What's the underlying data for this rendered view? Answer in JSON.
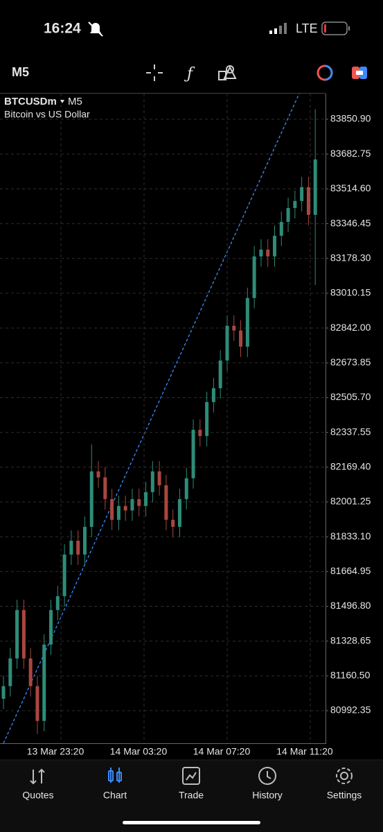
{
  "status_bar": {
    "time": "16:24",
    "network": "LTE"
  },
  "toolbar": {
    "timeframe": "M5"
  },
  "chart_data": {
    "type": "candlestick",
    "symbol": "BTCUSDm",
    "timeframe": "M5",
    "subtitle": "Bitcoin vs US Dollar",
    "up_color": "#2e8c78",
    "down_color": "#a8473f",
    "grid": true,
    "open": [
      81050,
      81111,
      81245,
      81479,
      81245,
      81111,
      80943,
      81312,
      81479,
      81546,
      81747,
      81814,
      81747,
      81881,
      82149,
      82120,
      82015,
      81915,
      81982,
      81960,
      82015,
      81982,
      82049,
      82149,
      82082,
      81915,
      81881,
      82015,
      82116,
      82350,
      82320,
      82484,
      82551,
      82685,
      82853,
      82830,
      82752,
      82987,
      83188,
      83221,
      83188,
      83288,
      83355,
      83422,
      83456,
      83523,
      83389
    ],
    "high": [
      81161,
      81295,
      81529,
      81529,
      81295,
      81161,
      81362,
      81529,
      81596,
      81797,
      81864,
      81864,
      81931,
      82280,
      82199,
      82170,
      82065,
      82032,
      82032,
      82065,
      82065,
      82099,
      82199,
      82199,
      82132,
      81965,
      82065,
      82166,
      82400,
      82400,
      82534,
      82601,
      82735,
      82903,
      82903,
      82880,
      83037,
      83238,
      83271,
      83271,
      83338,
      83405,
      83472,
      83506,
      83573,
      83573,
      83900
    ],
    "low": [
      81000,
      81061,
      81195,
      81195,
      81061,
      80880,
      80893,
      81262,
      81429,
      81496,
      81697,
      81697,
      81697,
      81831,
      82070,
      81965,
      81865,
      81865,
      81910,
      81910,
      81932,
      81932,
      81999,
      82032,
      81865,
      81831,
      81831,
      81965,
      82066,
      82270,
      82270,
      82434,
      82501,
      82635,
      82780,
      82702,
      82702,
      82937,
      83138,
      83138,
      83138,
      83238,
      83305,
      83372,
      83406,
      83339,
      83050
    ],
    "close": [
      81111,
      81245,
      81479,
      81245,
      81111,
      80943,
      81312,
      81479,
      81546,
      81747,
      81814,
      81747,
      81881,
      82149,
      82120,
      82015,
      81915,
      81982,
      81960,
      82015,
      81982,
      82049,
      82149,
      82082,
      81915,
      81881,
      82015,
      82116,
      82350,
      82320,
      82484,
      82551,
      82685,
      82853,
      82830,
      82752,
      82987,
      83188,
      83221,
      83188,
      83288,
      83355,
      83422,
      83456,
      83523,
      83389,
      83657
    ],
    "ylim": [
      80835,
      83975
    ],
    "yticks": [
      {
        "value": 83850.9,
        "label": "83850.90"
      },
      {
        "value": 83682.75,
        "label": "83682.75"
      },
      {
        "value": 83514.6,
        "label": "83514.60"
      },
      {
        "value": 83346.45,
        "label": "83346.45"
      },
      {
        "value": 83178.3,
        "label": "83178.30"
      },
      {
        "value": 83010.15,
        "label": "83010.15"
      },
      {
        "value": 82842,
        "label": "82842.00"
      },
      {
        "value": 82673.85,
        "label": "82673.85"
      },
      {
        "value": 82505.7,
        "label": "82505.70"
      },
      {
        "value": 82337.55,
        "label": "82337.55"
      },
      {
        "value": 82169.4,
        "label": "82169.40"
      },
      {
        "value": 82001.25,
        "label": "82001.25"
      },
      {
        "value": 81833.1,
        "label": "81833.10"
      },
      {
        "value": 81664.95,
        "label": "81664.95"
      },
      {
        "value": 81496.8,
        "label": "81496.80"
      },
      {
        "value": 81328.65,
        "label": "81328.65"
      },
      {
        "value": 81160.5,
        "label": "81160.50"
      },
      {
        "value": 80992.35,
        "label": "80992.35"
      }
    ],
    "xticks": [
      "13 Mar 23:20",
      "14 Mar 03:20",
      "14 Mar 07:20",
      "14 Mar 11:20"
    ]
  },
  "tab_bar": {
    "tabs": [
      "Quotes",
      "Chart",
      "Trade",
      "History",
      "Settings"
    ],
    "active": 1,
    "active_color": "#3d8bf7"
  }
}
